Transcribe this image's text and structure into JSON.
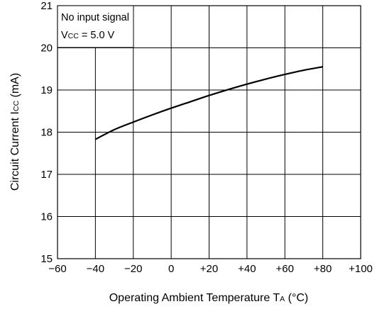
{
  "chart_data": {
    "type": "line",
    "xlabel": "Operating Ambient Temperature  T",
    "xlabel_sub": "A",
    "xlabel_unit": " (°C)",
    "ylabel": "Circuit Current  I",
    "ylabel_sub": "CC",
    "ylabel_unit": " (mA)",
    "xlim": [
      -60,
      100
    ],
    "ylim": [
      15,
      21
    ],
    "x_ticks": [
      {
        "value": -60,
        "label": "−60"
      },
      {
        "value": -40,
        "label": "−40"
      },
      {
        "value": -20,
        "label": "−20"
      },
      {
        "value": 0,
        "label": "0"
      },
      {
        "value": 20,
        "label": "+20"
      },
      {
        "value": 40,
        "label": "+40"
      },
      {
        "value": 60,
        "label": "+60"
      },
      {
        "value": 80,
        "label": "+80"
      },
      {
        "value": 100,
        "label": "+100"
      }
    ],
    "y_ticks": [
      {
        "value": 15,
        "label": "15"
      },
      {
        "value": 16,
        "label": "16"
      },
      {
        "value": 17,
        "label": "17"
      },
      {
        "value": 18,
        "label": "18"
      },
      {
        "value": 19,
        "label": "19"
      },
      {
        "value": 20,
        "label": "20"
      },
      {
        "value": 21,
        "label": "21"
      }
    ],
    "grid": true,
    "annotation": {
      "line1": "No input signal",
      "line2_prefix": "V",
      "line2_sub": "CC",
      "line2_suffix": " = 5.0 V"
    },
    "series": [
      {
        "x": [
          -40,
          -30,
          -20,
          -10,
          0,
          10,
          20,
          30,
          40,
          50,
          60,
          70,
          80
        ],
        "y": [
          17.83,
          18.06,
          18.24,
          18.41,
          18.57,
          18.72,
          18.87,
          19.01,
          19.14,
          19.26,
          19.37,
          19.47,
          19.55
        ]
      }
    ]
  }
}
